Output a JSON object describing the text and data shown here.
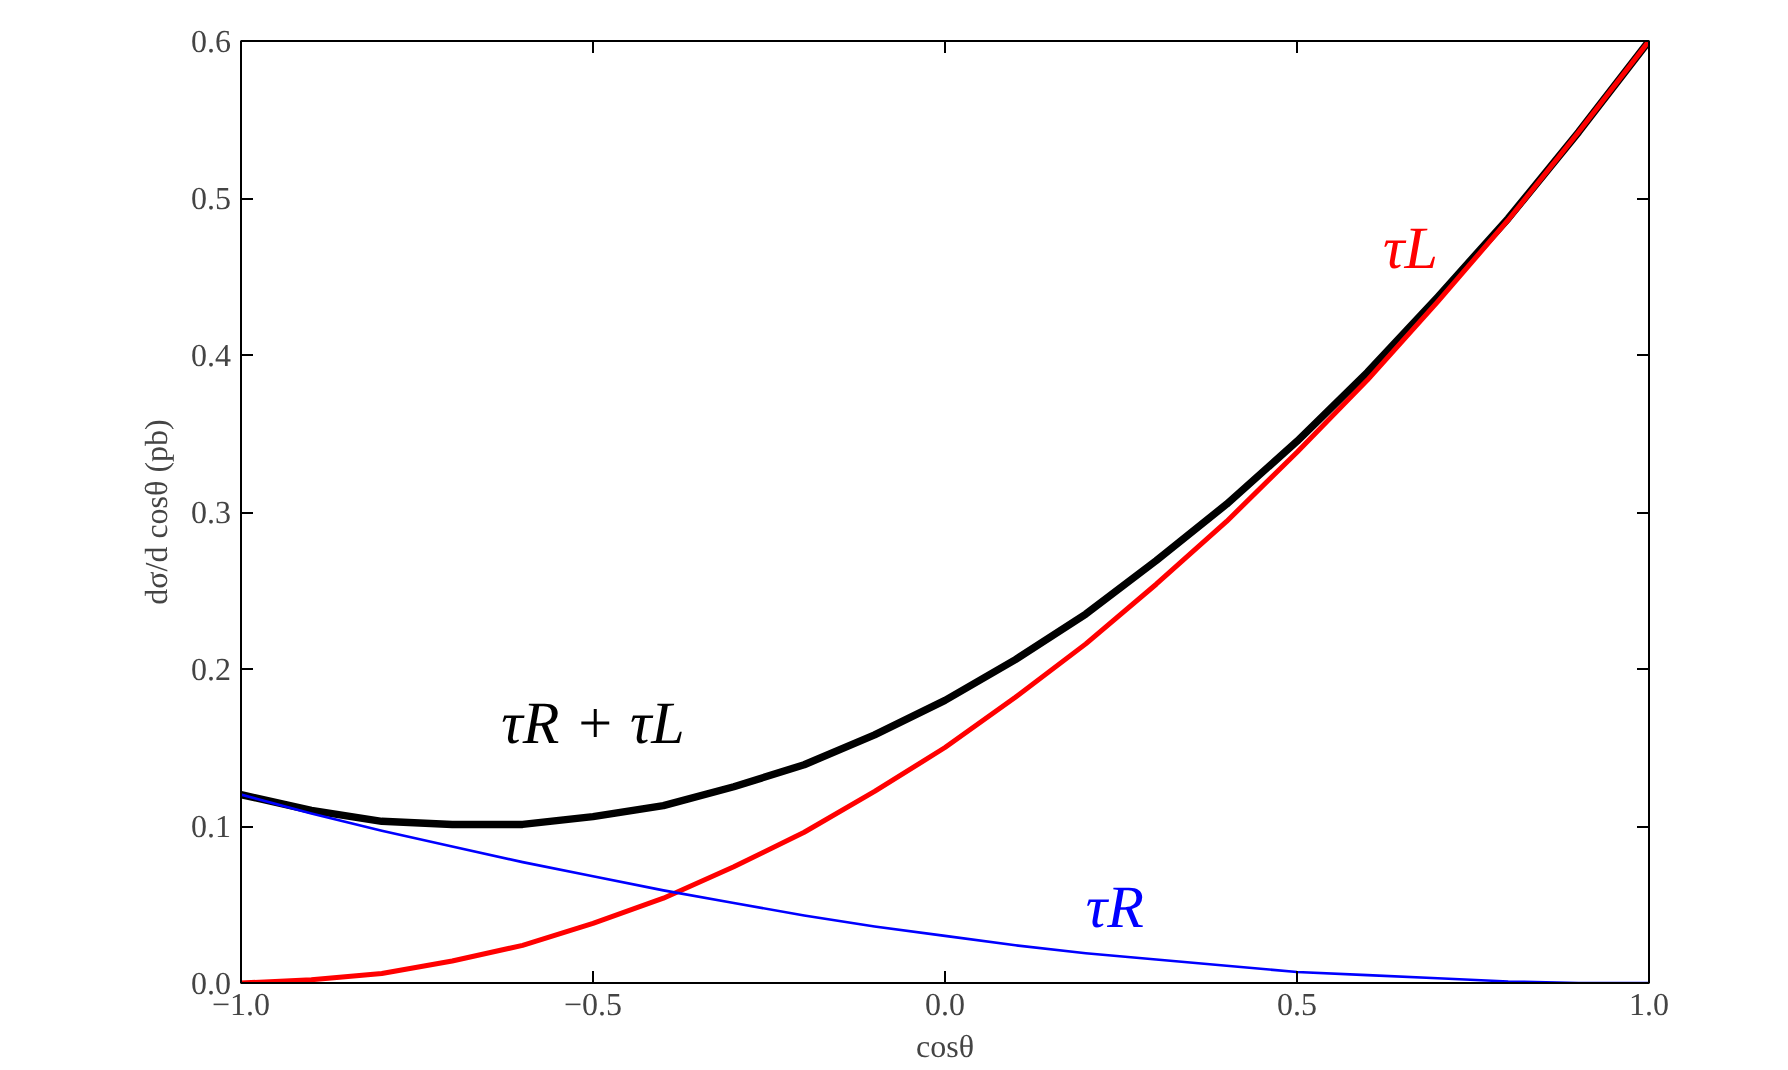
{
  "chart_data": {
    "type": "line",
    "xlabel": "cosθ",
    "ylabel": "dσ/d cosθ (pb)",
    "x": [
      -1.0,
      -0.9,
      -0.8,
      -0.7,
      -0.6,
      -0.5,
      -0.4,
      -0.3,
      -0.2,
      -0.1,
      0.0,
      0.1,
      0.2,
      0.3,
      0.4,
      0.5,
      0.6,
      0.7,
      0.8,
      0.9,
      1.0
    ],
    "series": [
      {
        "name": "τR + τL",
        "color": "#000000",
        "values": [
          0.12,
          0.11,
          0.103,
          0.101,
          0.101,
          0.106,
          0.113,
          0.125,
          0.139,
          0.158,
          0.18,
          0.206,
          0.235,
          0.269,
          0.305,
          0.345,
          0.389,
          0.437,
          0.487,
          0.542,
          0.6
        ]
      },
      {
        "name": "τL",
        "color": "#ff0000",
        "values": [
          0.0,
          0.002,
          0.006,
          0.014,
          0.024,
          0.038,
          0.054,
          0.074,
          0.096,
          0.122,
          0.15,
          0.182,
          0.216,
          0.254,
          0.294,
          0.338,
          0.384,
          0.434,
          0.486,
          0.542,
          0.6
        ]
      },
      {
        "name": "τR",
        "color": "#0000ff",
        "values": [
          0.12,
          0.108,
          0.097,
          0.087,
          0.077,
          0.068,
          0.059,
          0.051,
          0.043,
          0.036,
          0.03,
          0.024,
          0.019,
          0.015,
          0.011,
          0.007,
          0.005,
          0.003,
          0.001,
          0.0,
          0.0
        ]
      }
    ],
    "xlim": [
      -1.0,
      1.0
    ],
    "ylim": [
      0.0,
      0.6
    ],
    "xticks": [
      {
        "value": -1.0,
        "label": "−1.0"
      },
      {
        "value": -0.5,
        "label": "−0.5"
      },
      {
        "value": 0.0,
        "label": "0.0"
      },
      {
        "value": 0.5,
        "label": "0.5"
      },
      {
        "value": 1.0,
        "label": "1.0"
      }
    ],
    "yticks": [
      {
        "value": 0.0,
        "label": "0.0"
      },
      {
        "value": 0.1,
        "label": "0.1"
      },
      {
        "value": 0.2,
        "label": "0.2"
      },
      {
        "value": 0.3,
        "label": "0.3"
      },
      {
        "value": 0.4,
        "label": "0.4"
      },
      {
        "value": 0.5,
        "label": "0.5"
      },
      {
        "value": 0.6,
        "label": "0.6"
      }
    ],
    "grid": false,
    "marker": "none",
    "line_style": "solid"
  }
}
